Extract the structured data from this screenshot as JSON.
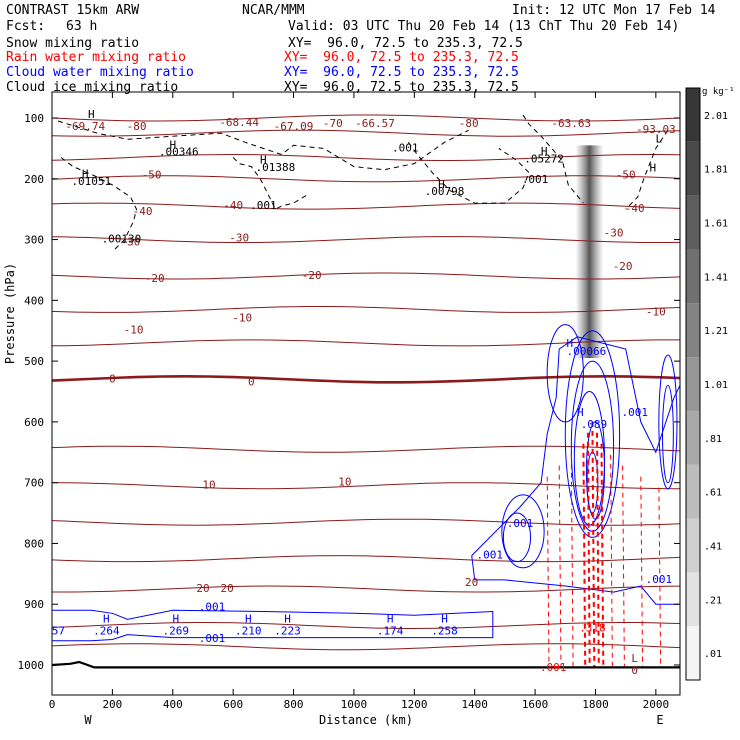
{
  "header": {
    "model": "CONTRAST 15km ARW",
    "org": "NCAR/MMM",
    "init": "Init: 12 UTC Mon 17 Feb 14",
    "fcst_label": "Fcst:",
    "fcst_value": "63 h",
    "valid": "Valid: 03 UTC Thu 20 Feb 14 (13 ChT Thu 20 Feb 14)"
  },
  "fields": [
    {
      "name": "Snow mixing ratio",
      "xy": "",
      "color": "#000000"
    },
    {
      "name": "Rain water mixing ratio",
      "xy": "XY=  96.0, 72.5 to 235.3, 72.5",
      "color": "#ff0000"
    },
    {
      "name": "Cloud water mixing ratio",
      "xy": "XY=  96.0, 72.5 to 235.3, 72.5",
      "color": "#0000ff"
    },
    {
      "name": "Cloud ice mixing ratio",
      "xy": "XY=  96.0, 72.5 to 235.3, 72.5",
      "color": "#000000"
    }
  ],
  "snow_xy": "XY=  96.0, 72.5 to 235.3, 72.5",
  "chart_data": {
    "type": "heatmap",
    "xlabel": "Distance (km)",
    "ylabel": "Pressure (hPa)",
    "xlim": [
      0,
      2080
    ],
    "ylim": [
      1050,
      75
    ],
    "x_ticks": [
      0,
      200,
      400,
      600,
      800,
      1000,
      1200,
      1400,
      1600,
      1800,
      2000
    ],
    "y_ticks": [
      100,
      200,
      300,
      400,
      500,
      600,
      700,
      800,
      900,
      1000
    ],
    "x_end_labels": {
      "left": "W",
      "right": "E"
    },
    "colorbar": {
      "unit": "g kg⁻¹",
      "ticks": [
        ".01",
        ".21",
        ".41",
        ".61",
        ".81",
        "1.01",
        "1.21",
        "1.41",
        "1.61",
        "1.81",
        "2.01"
      ]
    },
    "temperature_contours": {
      "color": "#8b1a1a",
      "levels": [
        {
          "level": -80,
          "p": 100
        },
        {
          "level": -70,
          "p": 125
        },
        {
          "level": -60,
          "p": 165
        },
        {
          "level": -50,
          "p": 200
        },
        {
          "level": -40,
          "p": 245
        },
        {
          "level": -30,
          "p": 300
        },
        {
          "level": -20,
          "p": 360
        },
        {
          "level": -10,
          "p": 415
        },
        {
          "level": -10,
          "p": 470
        },
        {
          "level": 0,
          "p": 530
        },
        {
          "level": 0,
          "p": 645
        },
        {
          "level": 10,
          "p": 705
        },
        {
          "level": 10,
          "p": 765
        },
        {
          "level": 20,
          "p": 825
        },
        {
          "level": 20,
          "p": 875
        },
        {
          "level": 20,
          "p": 935
        },
        {
          "level": 30,
          "p": 970
        }
      ],
      "labels": [
        {
          "text": "-69.74",
          "x": 110,
          "p": 115
        },
        {
          "text": "-80",
          "x": 280,
          "p": 115
        },
        {
          "text": "-68.44",
          "x": 620,
          "p": 108
        },
        {
          "text": "-67.09",
          "x": 800,
          "p": 115
        },
        {
          "text": "-70",
          "x": 930,
          "p": 110
        },
        {
          "text": "-66.57",
          "x": 1070,
          "p": 110
        },
        {
          "text": "-80",
          "x": 1380,
          "p": 110
        },
        {
          "text": "-63.63",
          "x": 1720,
          "p": 110
        },
        {
          "text": "-93.03",
          "x": 2000,
          "p": 120
        },
        {
          "text": "-50",
          "x": 330,
          "p": 195
        },
        {
          "text": "-50",
          "x": 1900,
          "p": 195
        },
        {
          "text": "-40",
          "x": 300,
          "p": 255
        },
        {
          "text": "-40",
          "x": 600,
          "p": 245
        },
        {
          "text": "-40",
          "x": 1930,
          "p": 250
        },
        {
          "text": "-30",
          "x": 260,
          "p": 305
        },
        {
          "text": "-30",
          "x": 620,
          "p": 298
        },
        {
          "text": "-30",
          "x": 1860,
          "p": 290
        },
        {
          "text": "-20",
          "x": 340,
          "p": 365
        },
        {
          "text": "-20",
          "x": 860,
          "p": 360
        },
        {
          "text": "-20",
          "x": 1890,
          "p": 345
        },
        {
          "text": "-10",
          "x": 270,
          "p": 450
        },
        {
          "text": "-10",
          "x": 630,
          "p": 430
        },
        {
          "text": "-10",
          "x": 2000,
          "p": 420
        },
        {
          "text": "0",
          "x": 200,
          "p": 530
        },
        {
          "text": "0",
          "x": 660,
          "p": 535
        },
        {
          "text": "10",
          "x": 520,
          "p": 705
        },
        {
          "text": "10",
          "x": 970,
          "p": 700
        },
        {
          "text": "20",
          "x": 500,
          "p": 875
        },
        {
          "text": "20",
          "x": 580,
          "p": 875
        },
        {
          "text": "20",
          "x": 1390,
          "p": 865
        },
        {
          "text": "L",
          "x": 1930,
          "p": 990
        },
        {
          "text": "0",
          "x": 1930,
          "p": 1010
        }
      ]
    },
    "snow_labels": [
      {
        "text": "H",
        "x": 130,
        "p": 95
      },
      {
        "text": "H",
        "x": 400,
        "p": 145
      },
      {
        "text": ".00346",
        "x": 420,
        "p": 157
      },
      {
        "text": "H",
        "x": 700,
        "p": 170
      },
      {
        "text": ".01388",
        "x": 740,
        "p": 182
      },
      {
        "text": ".001",
        "x": 1170,
        "p": 150
      },
      {
        "text": "H",
        "x": 1630,
        "p": 156
      },
      {
        "text": ".05272",
        "x": 1630,
        "p": 168
      },
      {
        "text": "H",
        "x": 110,
        "p": 193
      },
      {
        "text": ".01051",
        "x": 130,
        "p": 205
      },
      {
        "text": ".001",
        "x": 1600,
        "p": 202
      },
      {
        "text": "H",
        "x": 1290,
        "p": 210
      },
      {
        "text": ".00798",
        "x": 1300,
        "p": 222
      },
      {
        "text": ".001",
        "x": 700,
        "p": 245
      },
      {
        "text": ".00130",
        "x": 230,
        "p": 300
      },
      {
        "text": "L",
        "x": 2010,
        "p": 135
      },
      {
        "text": "H",
        "x": 1990,
        "p": 183
      }
    ],
    "snow_contours": [
      {
        "p": [
          105,
          125,
          135,
          130,
          125,
          140,
          150,
          160,
          145,
          150,
          180,
          185,
          175,
          140,
          120
        ],
        "x": [
          20,
          150,
          250,
          400,
          560,
          640,
          700,
          760,
          800,
          900,
          1000,
          1100,
          1200,
          1300,
          1380
        ]
      },
      {
        "p": [
          165,
          180,
          195,
          210,
          230,
          250,
          270,
          300,
          320
        ],
        "x": [
          30,
          70,
          140,
          200,
          260,
          280,
          270,
          240,
          200
        ]
      },
      {
        "p": [
          165,
          175,
          180,
          200,
          230,
          250,
          245,
          240,
          225
        ],
        "x": [
          600,
          620,
          660,
          690,
          720,
          740,
          760,
          800,
          850
        ]
      },
      {
        "p": [
          140,
          160,
          190,
          220,
          240,
          240,
          215,
          190,
          170,
          150
        ],
        "x": [
          1180,
          1210,
          1260,
          1320,
          1400,
          1500,
          1560,
          1580,
          1540,
          1480
        ]
      },
      {
        "p": [
          95,
          110,
          130,
          170,
          210,
          240
        ],
        "x": [
          1560,
          1580,
          1620,
          1690,
          1710,
          1760
        ]
      },
      {
        "p": [
          120,
          150,
          175,
          200,
          230,
          250
        ],
        "x": [
          2040,
          2000,
          1980,
          1960,
          1940,
          1900
        ]
      }
    ],
    "shaded_column": {
      "x": 1780,
      "p_top": 145,
      "p_bottom": 495,
      "max": 1.9
    },
    "cloud_water_labels": [
      {
        "text": "H",
        "x": 1715,
        "p": 472
      },
      {
        "text": ".00066",
        "x": 1770,
        "p": 485
      },
      {
        "text": "H",
        "x": 1750,
        "p": 585
      },
      {
        "text": ".089",
        "x": 1795,
        "p": 605
      },
      {
        "text": ".001",
        "x": 1930,
        "p": 585
      },
      {
        "text": ".001",
        "x": 1550,
        "p": 768
      },
      {
        "text": ".001",
        "x": 1450,
        "p": 820
      },
      {
        "text": ".001",
        "x": 2010,
        "p": 860
      },
      {
        "text": "H",
        "x": 180,
        "p": 925
      },
      {
        "text": ".264",
        "x": 180,
        "p": 945
      },
      {
        "text": "H",
        "x": 410,
        "p": 925
      },
      {
        "text": ".269",
        "x": 410,
        "p": 945
      },
      {
        "text": ".001",
        "x": 530,
        "p": 905
      },
      {
        "text": ".001",
        "x": 530,
        "p": 957
      },
      {
        "text": "H",
        "x": 650,
        "p": 925
      },
      {
        "text": ".210",
        "x": 650,
        "p": 945
      },
      {
        "text": "H",
        "x": 780,
        "p": 925
      },
      {
        "text": ".223",
        "x": 780,
        "p": 945
      },
      {
        "text": "H",
        "x": 1120,
        "p": 925
      },
      {
        "text": ".174",
        "x": 1120,
        "p": 945
      },
      {
        "text": "H",
        "x": 1300,
        "p": 925
      },
      {
        "text": ".258",
        "x": 1300,
        "p": 945
      },
      {
        "text": ".57",
        "x": 10,
        "p": 945
      }
    ],
    "rain_labels": [
      {
        "text": ".318",
        "x": 1790,
        "p": 940
      },
      {
        "text": ".001",
        "x": 1660,
        "p": 1005
      }
    ],
    "surface_pressure": [
      [
        0,
        1000
      ],
      [
        60,
        998
      ],
      [
        90,
        995
      ],
      [
        140,
        1004
      ],
      [
        300,
        1004
      ],
      [
        600,
        1004
      ],
      [
        1000,
        1004
      ],
      [
        1400,
        1004
      ],
      [
        1800,
        1004
      ],
      [
        2080,
        1004
      ]
    ]
  }
}
